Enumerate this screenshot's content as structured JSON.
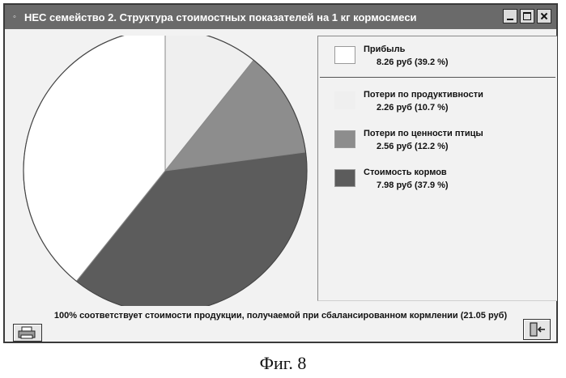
{
  "window": {
    "title": "НЕС семейство 2. Структура стоимостных показателей на 1 кг кормосмеси"
  },
  "chart_data": {
    "type": "pie",
    "slices": [
      {
        "name": "Прибыль",
        "value": 8.26,
        "unit": "руб",
        "percent": 39.2,
        "color": "#ffffff"
      },
      {
        "name": "Потери по продуктивности",
        "value": 2.26,
        "unit": "руб",
        "percent": 10.7,
        "color": "#efefef"
      },
      {
        "name": "Потери по ценности птицы",
        "value": 2.56,
        "unit": "руб",
        "percent": 12.2,
        "color": "#8d8d8d"
      },
      {
        "name": "Стоимость кормов",
        "value": 7.98,
        "unit": "руб",
        "percent": 37.9,
        "color": "#5c5c5c"
      }
    ],
    "total": 21.05
  },
  "legend": {
    "items": [
      {
        "label": "Прибыль",
        "value_text": "8.26 руб   (39.2 %)"
      },
      {
        "label": "Потери по продуктивности",
        "value_text": "2.26 руб   (10.7 %)"
      },
      {
        "label": "Потери по ценности птицы",
        "value_text": "2.56 руб   (12.2 %)"
      },
      {
        "label": "Стоимость кормов",
        "value_text": "7.98 руб   (37.9 %)"
      }
    ]
  },
  "footnote": "100% соответствует стоимости продукции, получаемой при сбалансированном кормлении (21.05 руб)",
  "icons": {
    "print": "printer-icon",
    "exit": "exit-door-icon"
  },
  "caption": "Фиг. 8"
}
